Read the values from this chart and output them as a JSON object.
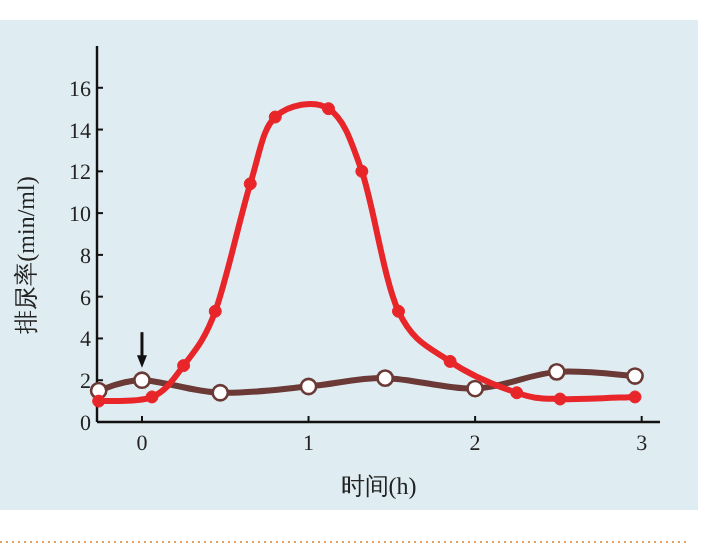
{
  "chart_data": {
    "type": "line",
    "xlabel": "时间(h)",
    "ylabel": "排尿率(min/ml)",
    "xlim": [
      -0.27,
      3.11
    ],
    "ylim": [
      0,
      18
    ],
    "xticks": [
      0,
      1,
      2,
      3
    ],
    "yticks": [
      0,
      2,
      4,
      6,
      8,
      10,
      12,
      14,
      16
    ],
    "marker": "circle",
    "grid": false,
    "series": [
      {
        "color": "#e8262a",
        "x": [
          -0.26,
          0.06,
          0.25,
          0.44,
          0.65,
          0.8,
          1.12,
          1.32,
          1.54,
          1.85,
          2.25,
          2.51,
          2.96
        ],
        "values": [
          1.0,
          1.2,
          2.7,
          5.3,
          11.4,
          14.6,
          15.0,
          12.0,
          5.3,
          2.9,
          1.4,
          1.1,
          1.2
        ]
      },
      {
        "color": "#6b3a36",
        "x": [
          -0.26,
          0,
          0.47,
          1.0,
          1.46,
          2.0,
          2.49,
          2.96
        ],
        "values": [
          1.5,
          2.0,
          1.4,
          1.7,
          2.1,
          1.6,
          2.4,
          2.2
        ]
      }
    ]
  }
}
